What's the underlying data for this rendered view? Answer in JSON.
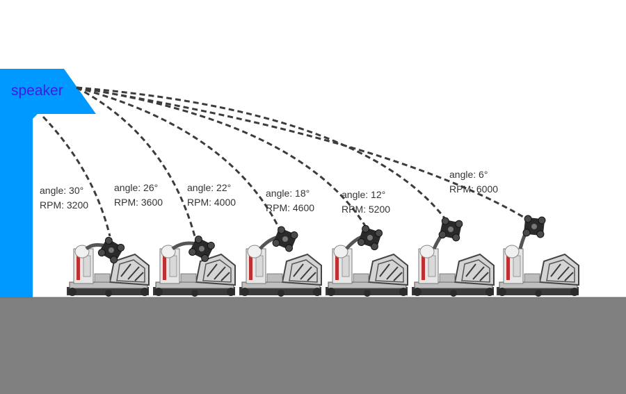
{
  "speaker": {
    "label": "speaker",
    "color": "#0099ff",
    "text_color": "#3d1de0"
  },
  "floor": {
    "color": "#808080"
  },
  "trajectory_color": "#3c3c3c",
  "shots": [
    {
      "angle": "angle: 30°",
      "rpm": "RPM: 3200"
    },
    {
      "angle": "angle: 26°",
      "rpm": "RPM: 3600"
    },
    {
      "angle": "angle: 22°",
      "rpm": "RPM: 4000"
    },
    {
      "angle": "angle: 18°",
      "rpm": "RPM: 4600"
    },
    {
      "angle": "angle: 12°",
      "rpm": "RPM: 5200"
    },
    {
      "angle": "angle: 6°",
      "rpm": "RPM: 6000"
    }
  ]
}
